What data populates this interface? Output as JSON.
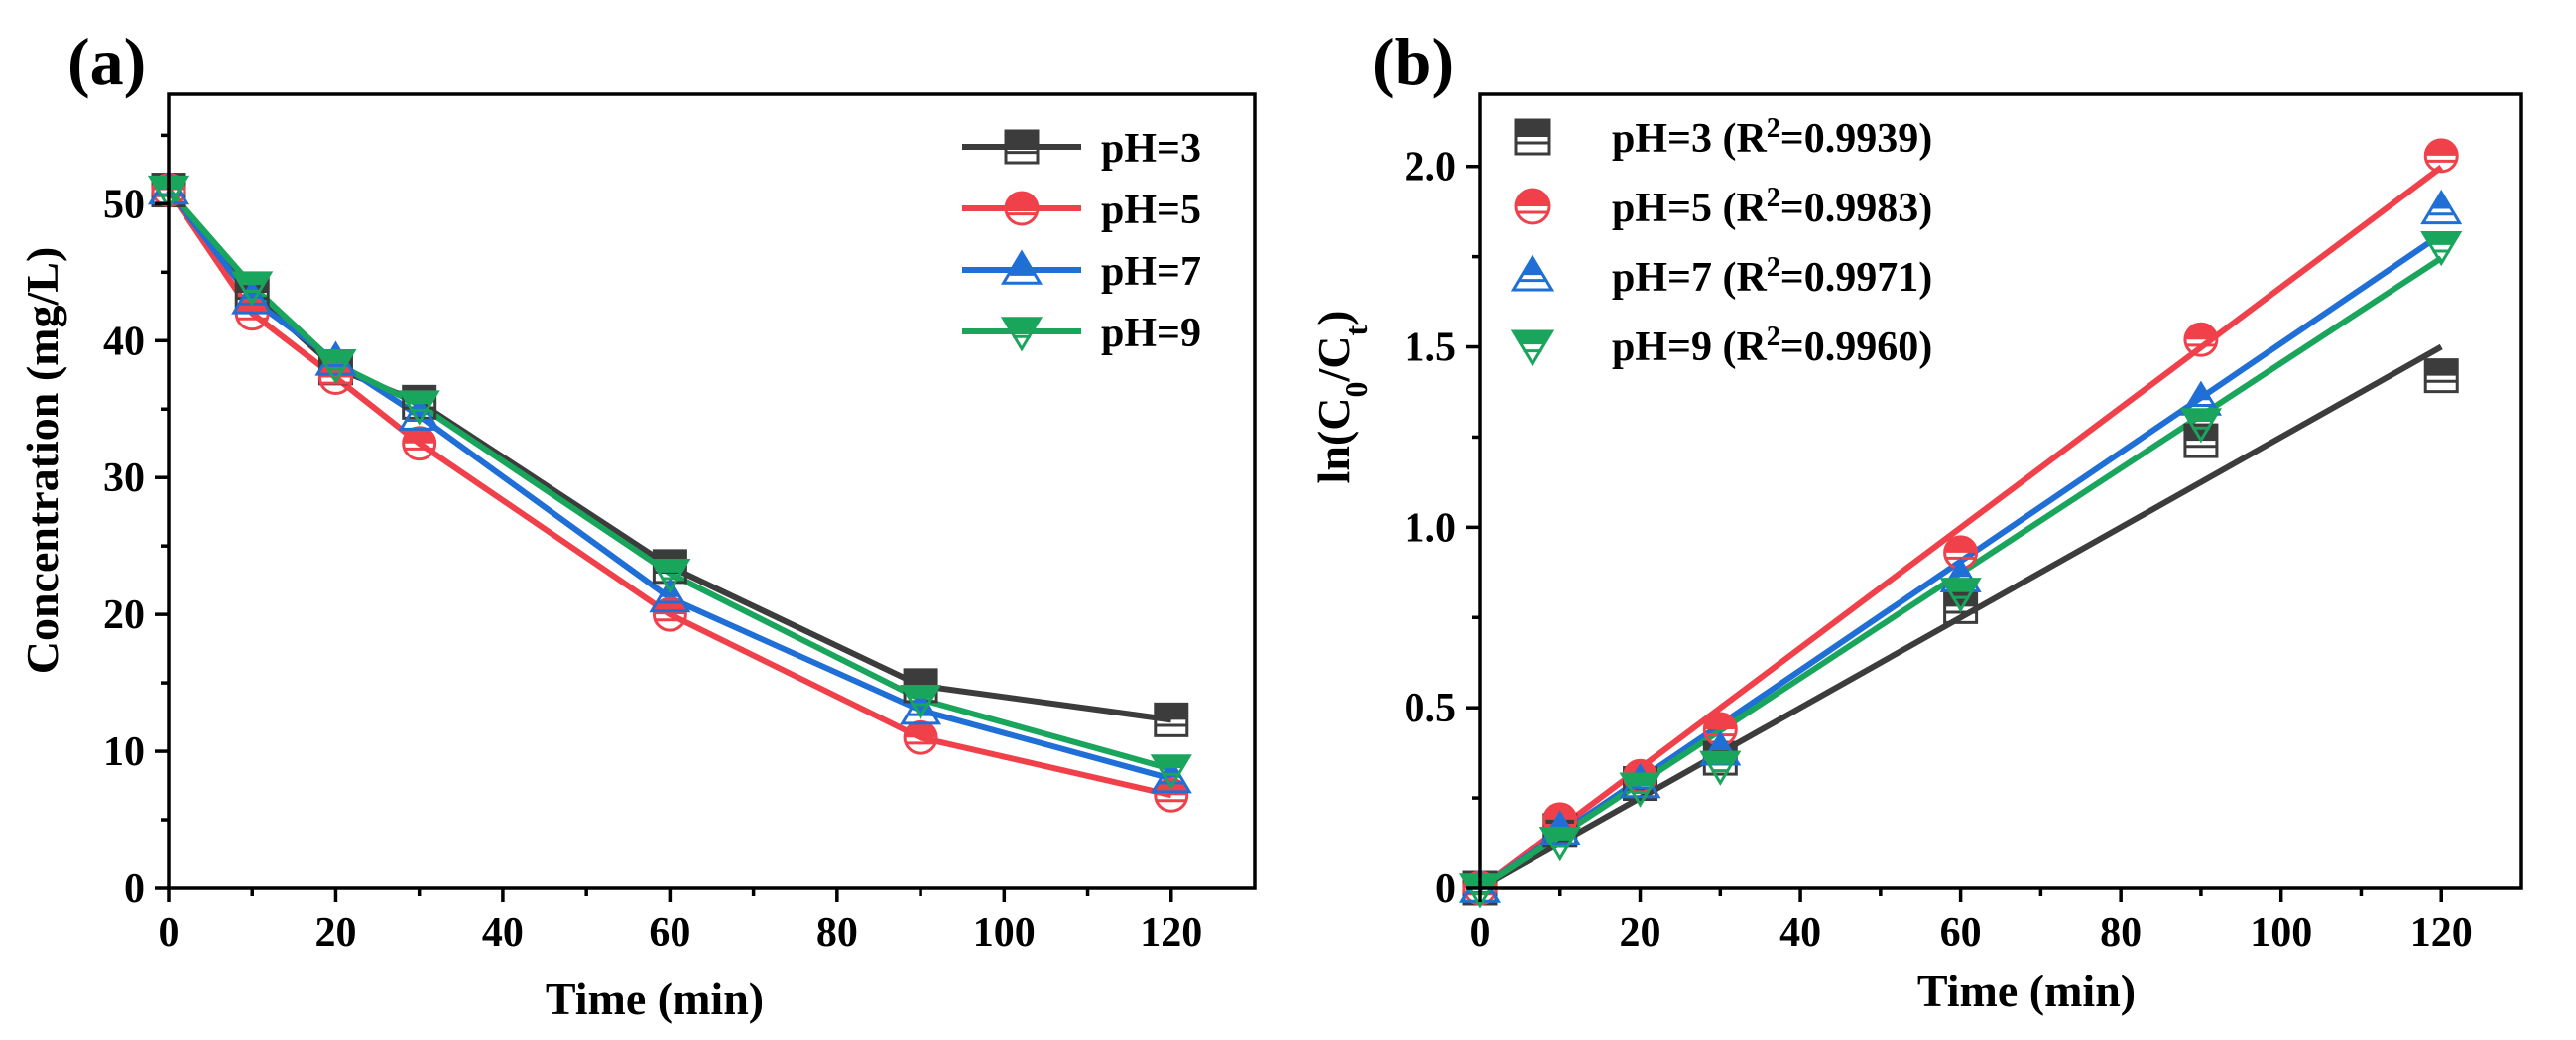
{
  "chart_data": [
    {
      "type": "line",
      "panel_label": "(a)",
      "xlabel": "Time (min)",
      "ylabel": "Concentration (mg/L)",
      "xlim": [
        0,
        130
      ],
      "ylim": [
        0,
        58
      ],
      "xticks": [
        0,
        20,
        40,
        60,
        80,
        100,
        120
      ],
      "yticks": [
        0,
        10,
        20,
        30,
        40,
        50
      ],
      "grid": false,
      "legend_position": "top-right",
      "x": [
        0,
        10,
        20,
        30,
        60,
        90,
        120
      ],
      "series": [
        {
          "name": "pH=3",
          "marker": "square",
          "color": "#3c3c3c",
          "values": [
            51,
            43.5,
            38,
            35.5,
            23.5,
            14.8,
            12.3
          ]
        },
        {
          "name": "pH=5",
          "marker": "circle",
          "color": "#f0414b",
          "values": [
            51,
            42,
            37.3,
            32.5,
            20,
            11,
            6.8
          ]
        },
        {
          "name": "pH=7",
          "marker": "triangle-up",
          "color": "#1f6fd6",
          "values": [
            51,
            43,
            38.5,
            34.5,
            21.2,
            13,
            8
          ]
        },
        {
          "name": "pH=9",
          "marker": "triangle-down",
          "color": "#1aa55c",
          "values": [
            51,
            44,
            38.3,
            35.3,
            23,
            13.8,
            8.7
          ]
        }
      ]
    },
    {
      "type": "scatter",
      "panel_label": "(b)",
      "xlabel": "Time (min)",
      "ylabel": "ln(C0/Ct)",
      "ylabel_parts": {
        "prefix": "ln(C",
        "sub1": "0",
        "mid": "/C",
        "sub2": "t",
        "suffix": ")"
      },
      "xlim": [
        0,
        130
      ],
      "ylim": [
        0,
        2.2
      ],
      "xticks": [
        0,
        20,
        40,
        60,
        80,
        100,
        120
      ],
      "yticks": [
        0,
        0.5,
        1.0,
        1.5,
        2.0
      ],
      "ytick_labels": [
        "0",
        "0.5",
        "1.0",
        "1.5",
        "2.0"
      ],
      "grid": false,
      "legend_position": "top-left",
      "x": [
        0,
        10,
        20,
        30,
        60,
        90,
        120
      ],
      "series": [
        {
          "name": "pH=3",
          "r2": "0.9939",
          "marker": "square",
          "color": "#3c3c3c",
          "values": [
            0,
            0.16,
            0.29,
            0.36,
            0.78,
            1.24,
            1.42
          ],
          "fit": [
            0,
            0.0125
          ]
        },
        {
          "name": "pH=5",
          "r2": "0.9983",
          "marker": "circle",
          "color": "#f0414b",
          "values": [
            0,
            0.19,
            0.31,
            0.44,
            0.93,
            1.52,
            2.03
          ],
          "fit": [
            0,
            0.01665
          ]
        },
        {
          "name": "pH=7",
          "r2": "0.9971",
          "marker": "triangle-up",
          "color": "#1f6fd6",
          "values": [
            0,
            0.16,
            0.29,
            0.38,
            0.86,
            1.35,
            1.88
          ],
          "fit": [
            0,
            0.0151
          ]
        },
        {
          "name": "pH=9",
          "r2": "0.9960",
          "marker": "triangle-down",
          "color": "#1aa55c",
          "values": [
            0,
            0.13,
            0.28,
            0.34,
            0.82,
            1.29,
            1.78
          ],
          "fit": [
            0,
            0.01455
          ]
        }
      ]
    }
  ]
}
